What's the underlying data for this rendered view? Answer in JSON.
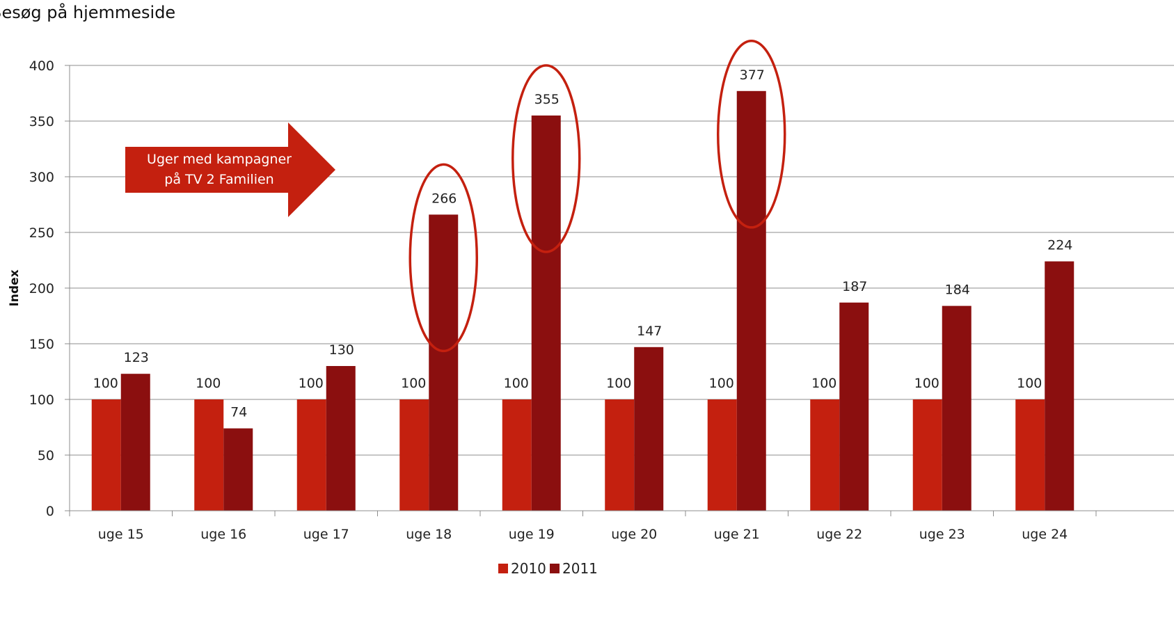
{
  "chart_data": {
    "type": "bar",
    "title": "Besøg på hjemmeside",
    "ylabel": "Index",
    "xlabel": "",
    "ylim": [
      0,
      400
    ],
    "yticks": [
      0,
      50,
      100,
      150,
      200,
      250,
      300,
      350,
      400
    ],
    "grid": true,
    "categories": [
      "uge 15",
      "uge 16",
      "uge 17",
      "uge 18",
      "uge 19",
      "uge 20",
      "uge 21",
      "uge 22",
      "uge 23",
      "uge 24"
    ],
    "series": [
      {
        "name": "2010",
        "color": "#c4200f",
        "values": [
          100,
          100,
          100,
          100,
          100,
          100,
          100,
          100,
          100,
          100
        ]
      },
      {
        "name": "2011",
        "color": "#8b0f0f",
        "values": [
          123,
          74,
          130,
          266,
          355,
          147,
          377,
          187,
          184,
          224
        ]
      }
    ],
    "legend_position": "bottom",
    "annotations": {
      "arrow_text": [
        "Uger med kampagner",
        "på TV 2 Familien"
      ],
      "arrow_color": "#c4200f",
      "highlight_color": "#c4200f",
      "highlighted_categories": [
        "uge 18",
        "uge 19",
        "uge 21"
      ]
    }
  }
}
